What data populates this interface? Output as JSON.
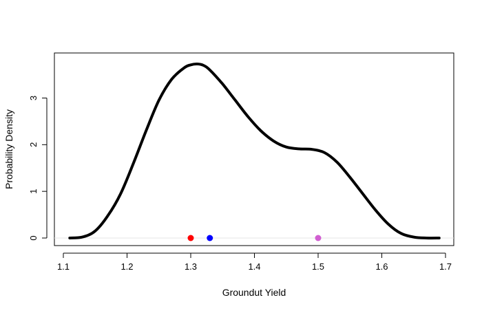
{
  "chart_data": {
    "type": "line",
    "title": "",
    "xlabel": "Groundut Yield",
    "ylabel": "Probability Density",
    "xlim": [
      1.1,
      1.7
    ],
    "ylim": [
      0,
      3.7
    ],
    "x_ticks": [
      1.1,
      1.2,
      1.3,
      1.4,
      1.5,
      1.6,
      1.7
    ],
    "x_tick_labels": [
      "1.1",
      "1.2",
      "1.3",
      "1.4",
      "1.5",
      "1.6",
      "1.7"
    ],
    "y_ticks": [
      0,
      1,
      2,
      3
    ],
    "y_tick_labels": [
      "0",
      "1",
      "2",
      "3"
    ],
    "grid": false,
    "series": [
      {
        "color": "#000000",
        "x": [
          1.11,
          1.13,
          1.15,
          1.17,
          1.19,
          1.21,
          1.23,
          1.25,
          1.27,
          1.29,
          1.3,
          1.31,
          1.32,
          1.33,
          1.35,
          1.37,
          1.39,
          1.41,
          1.43,
          1.45,
          1.47,
          1.49,
          1.51,
          1.53,
          1.55,
          1.57,
          1.59,
          1.61,
          1.63,
          1.65,
          1.67,
          1.69
        ],
        "y": [
          0.0,
          0.02,
          0.15,
          0.48,
          0.95,
          1.6,
          2.3,
          2.95,
          3.4,
          3.65,
          3.71,
          3.73,
          3.7,
          3.6,
          3.3,
          2.95,
          2.6,
          2.3,
          2.08,
          1.95,
          1.91,
          1.9,
          1.83,
          1.62,
          1.3,
          0.95,
          0.6,
          0.3,
          0.1,
          0.02,
          0.0,
          0.0
        ]
      }
    ],
    "baseline": {
      "y": 0,
      "color": "#e6e6e6"
    },
    "points": [
      {
        "x": 1.3,
        "y": 0,
        "color": "#ff0000"
      },
      {
        "x": 1.33,
        "y": 0,
        "color": "#0000ff"
      },
      {
        "x": 1.5,
        "y": 0,
        "color": "#d15fd1"
      }
    ]
  }
}
